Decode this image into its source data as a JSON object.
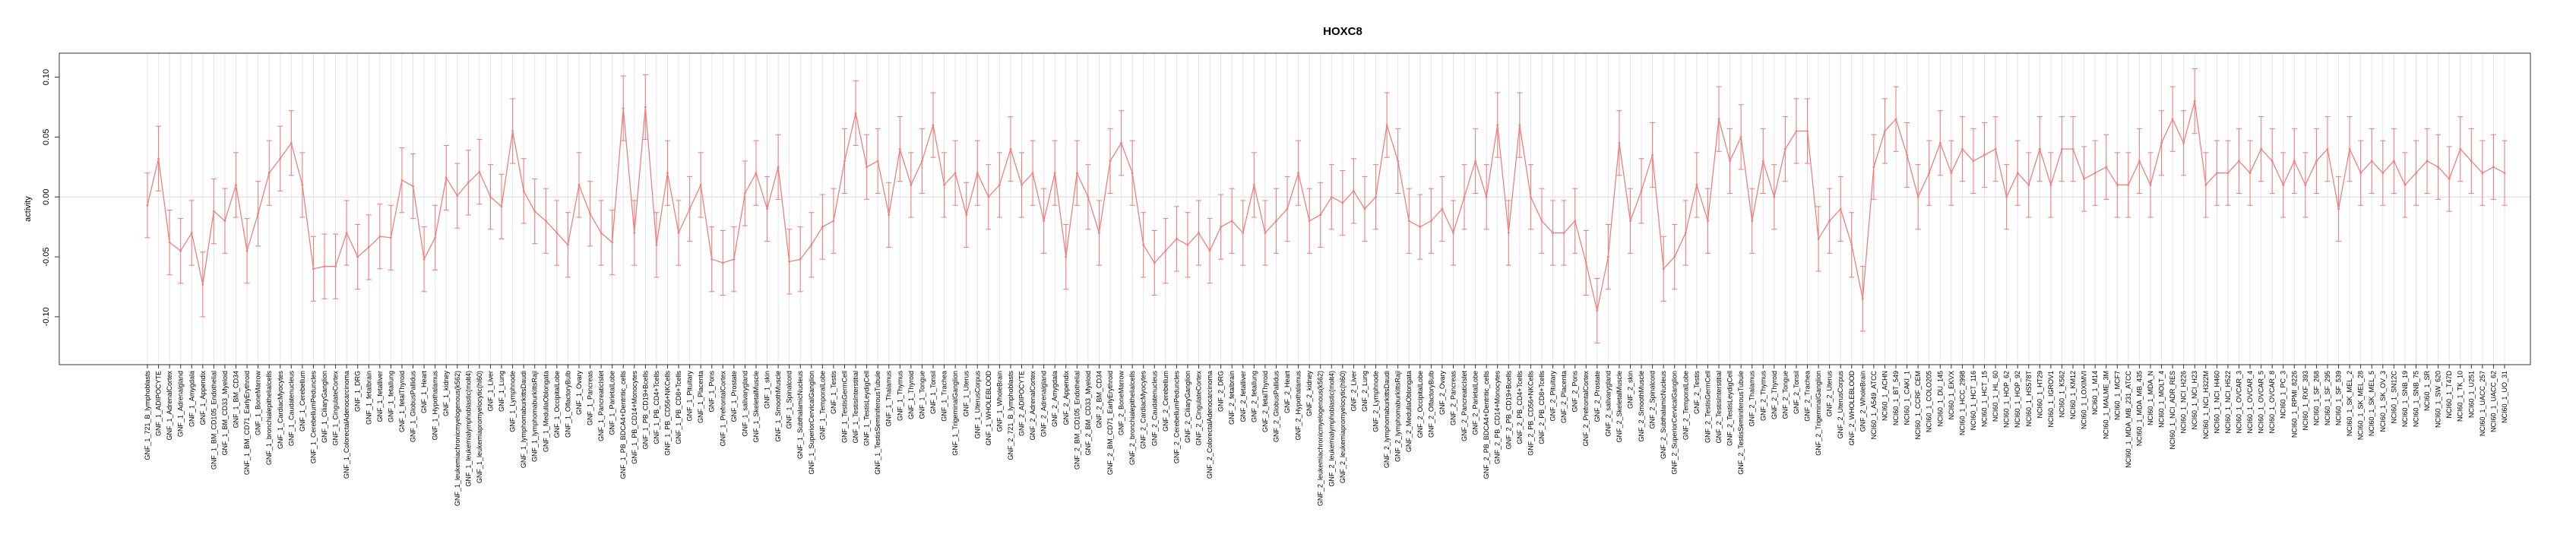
{
  "chart_data": {
    "type": "line",
    "title": "HOXC8",
    "ylabel": "activity",
    "xlabel": "",
    "ylim": [
      -0.14,
      0.12
    ],
    "yticks": [
      -0.1,
      -0.05,
      0.0,
      0.05,
      0.1
    ],
    "ytick_labels": [
      "-0.10",
      "-0.05",
      "0.00",
      "0.05",
      "0.10"
    ],
    "grid": true,
    "zero_line": true,
    "line_color": "#f08080",
    "grid_color": "#e6e6e6",
    "categories": [
      "GNF_1_721_B_lymphoblasts",
      "GNF_1_ADIPOCYTE",
      "GNF_1_AdrenalCortex",
      "GNF_1_Adrenalgland",
      "GNF_1_Amygdala",
      "GNF_1_Appendix",
      "GNF_1_BM_CD105_Endothelial",
      "GNF_1_BM_CD33_Myeloid",
      "GNF_1_BM_CD34",
      "GNF_1_BM_CD71_EarlyErythroid",
      "GNF_1_BoneMarrow",
      "GNF_1_bronchialepithelialcells",
      "GNF_1_CardiacMyocytes",
      "GNF_1_Caudatenucleus",
      "GNF_1_Cerebellum",
      "GNF_1_CerebellumPeduncles",
      "GNF_1_CiliaryGanglion",
      "GNF_1_CingulateCortex",
      "GNF_1_ColorectalAdenocarcinoma",
      "GNF_1_DRG",
      "GNF_1_fetalbrain",
      "GNF_1_fetalliver",
      "GNF_1_fetallung",
      "GNF_1_fetalThyroid",
      "GNF_1_GlobusPallidus",
      "GNF_1_Heart",
      "GNF_1_Hypothalamus",
      "GNF_1_kidney",
      "GNF_1_leukemiachronicmyelogenous(k562)",
      "GNF_1_leukemialymphoblastic(molt4)",
      "GNF_1_leukemiapromyelocytic(hl60)",
      "GNF_1_Liver",
      "GNF_1_Lung",
      "GNF_1_Lymphnode",
      "GNF_1_lymphomaburkittsDaudi",
      "GNF_1_lymphomaburkittsRaji",
      "GNF_1_MedullaOblongata",
      "GNF_1_OccipitalLobe",
      "GNF_1_OlfactoryBulb",
      "GNF_1_Ovary",
      "GNF_1_Pancreas",
      "GNF_1_PancreaticIslet",
      "GNF_1_ParietalLobe",
      "GNF_1_PB_BDCA4+Dentritic_cells",
      "GNF_1_PB_CD14+Monocytes",
      "GNF_1_PB_CD19+Bcells",
      "GNF_1_PB_CD4+Tcells",
      "GNF_1_PB_CD56+NKCells",
      "GNF_1_PB_CD8+Tcells",
      "GNF_1_Pituitary",
      "GNF_1_Placenta",
      "GNF_1_Pons",
      "GNF_1_PrefrontalCortex",
      "GNF_1_Prostate",
      "GNF_1_salivarygland",
      "GNF_1_SkeletalMuscle",
      "GNF_1_skin",
      "GNF_1_SmoothMuscle",
      "GNF_1_Spinalcord",
      "GNF_1_SubthalamicNucleus",
      "GNF_1_SuperiorCervicalGanglion",
      "GNF_1_TemporalLobe",
      "GNF_1_Testis",
      "GNF_1_TestisGermCell",
      "GNF_1_TestisInterstitial",
      "GNF_1_TestisLeydigCell",
      "GNF_1_TestisSeminiferousTubule",
      "GNF_1_Thalamus",
      "GNF_1_Thymus",
      "GNF_1_Thyroid",
      "GNF_1_Tongue",
      "GNF_1_Tonsil",
      "GNF_1_Trachea",
      "GNF_1_TrigeminalGanglion",
      "GNF_1_Uterus",
      "GNF_1_UterusCorpus",
      "GNF_1_WHOLEBLOOD",
      "GNF_1_WholeBrain",
      "GNF_2_721_B_lymphoblasts",
      "GNF_2_ADIPOCYTE",
      "GNF_2_AdrenalCortex",
      "GNF_2_Adrenalgland",
      "GNF_2_Amygdala",
      "GNF_2_Appendix",
      "GNF_2_BM_CD105_Endothelial",
      "GNF_2_BM_CD33_Myeloid",
      "GNF_2_BM_CD34",
      "GNF_2_BM_CD71_EarlyErythroid",
      "GNF_2_BoneMarrow",
      "GNF_2_bronchialepithelialcells",
      "GNF_2_CardiacMyocytes",
      "GNF_2_Caudatenucleus",
      "GNF_2_Cerebellum",
      "GNF_2_CerebellumPeduncles",
      "GNF_2_CiliaryGanglion",
      "GNF_2_CingulateCortex",
      "GNF_2_ColorectalAdenocarcinoma",
      "GNF_2_DRG",
      "GNF_2_fetalbrain",
      "GNF_2_fetalliver",
      "GNF_2_fetallung",
      "GNF_2_fetalThyroid",
      "GNF_2_GlobusPallidus",
      "GNF_2_Heart",
      "GNF_2_Hypothalamus",
      "GNF_2_kidney",
      "GNF_2_leukemiachronicmyelogenous(k562)",
      "GNF_2_leukemialymphoblastic(molt4)",
      "GNF_2_leukemiapromyelocytic(hl60)",
      "GNF_2_Liver",
      "GNF_2_Lung",
      "GNF_2_Lymphnode",
      "GNF_2_lymphomaburkittsDaudi",
      "GNF_2_lymphomaburkittsRaji",
      "GNF_2_MedullaOblongata",
      "GNF_2_OccipitalLobe",
      "GNF_2_OlfactoryBulb",
      "GNF_2_Ovary",
      "GNF_2_Pancreas",
      "GNF_2_PancreaticIslet",
      "GNF_2_ParietalLobe",
      "GNF_2_PB_BDCA4+Dentritic_cells",
      "GNF_2_PB_CD14+Monocytes",
      "GNF_2_PB_CD19+Bcells",
      "GNF_2_PB_CD4+Tcells",
      "GNF_2_PB_CD56+NKCells",
      "GNF_2_PB_CD8+Tcells",
      "GNF_2_Pituitary",
      "GNF_2_Placenta",
      "GNF_2_Pons",
      "GNF_2_PrefrontalCortex",
      "GNF_2_Prostate",
      "GNF_2_salivarygland",
      "GNF_2_SkeletalMuscle",
      "GNF_2_skin",
      "GNF_2_SmoothMuscle",
      "GNF_2_Spinalcord",
      "GNF_2_SubthalamicNucleus",
      "GNF_2_SuperiorCervicalGanglion",
      "GNF_2_TemporalLobe",
      "GNF_2_Testis",
      "GNF_2_TestisGermCell",
      "GNF_2_TestisInterstitial",
      "GNF_2_TestisLeydigCell",
      "GNF_2_TestisSeminiferousTubule",
      "GNF_2_Thalamus",
      "GNF_2_Thymus",
      "GNF_2_Thyroid",
      "GNF_2_Tongue",
      "GNF_2_Tonsil",
      "GNF_2_Trachea",
      "GNF_2_TrigeminalGanglion",
      "GNF_2_Uterus",
      "GNF_2_UterusCorpus",
      "GNF_2_WHOLEBLOOD",
      "GNF_2_WholeBrain",
      "NCI60_1_A549_ATCC",
      "NCI60_1_ACHN",
      "NCI60_1_BT_549",
      "NCI60_1_CAKI_1",
      "NCI60_1_CCRF_CEM",
      "NCI60_1_COLO205",
      "NCI60_1_DU_145",
      "NCI60_1_EKVX",
      "NCI60_1_HCC_2998",
      "NCI60_1_HCT_116",
      "NCI60_1_HCT_15",
      "NCI60_1_HL_60",
      "NCI60_1_HOP_62",
      "NCI60_1_HOP_92",
      "NCI60_1_HS578T",
      "NCI60_1_HT29",
      "NCI60_1_IGROV1",
      "NCI60_1_K562",
      "NCI60_1_KM12",
      "NCI60_1_LOXIMVI",
      "NCI60_1_M14",
      "NCI60_1_MALME_3M",
      "NCI60_1_MCF7",
      "NCI60_1_MDA_MB_231_ATCC",
      "NCI60_1_MDA_MB_435",
      "NCI60_1_MDA_N",
      "NCI60_1_MOLT_4",
      "NCI60_1_NCI_ADR_RES",
      "NCI60_1_NCI_H226",
      "NCI60_1_NCI_H23",
      "NCI60_1_NCI_H322M",
      "NCI60_1_NCI_H460",
      "NCI60_1_NCI_H522",
      "NCI60_1_OVCAR_3",
      "NCI60_1_OVCAR_4",
      "NCI60_1_OVCAR_5",
      "NCI60_1_OVCAR_8",
      "NCI60_1_PC_3",
      "NCI60_1_RPMI_8226",
      "NCI60_1_RXF_393",
      "NCI60_1_SF_268",
      "NCI60_1_SF_295",
      "NCI60_1_SF_539",
      "NCI60_1_SK_MEL_2",
      "NCI60_1_SK_MEL_28",
      "NCI60_1_SK_MEL_5",
      "NCI60_1_SK_OV_3",
      "NCI60_1_SN12C",
      "NCI60_1_SNB_19",
      "NCI60_1_SNB_75",
      "NCI60_1_SR",
      "NCI60_1_SW_620",
      "NCI60_1_T47D",
      "NCI60_1_TK_10",
      "NCI60_1_U251",
      "NCI60_1_UACC_257",
      "NCI60_1_UACC_62",
      "NCI60_1_UO_31"
    ],
    "series": [
      {
        "values": [
          -0.007,
          0.032,
          -0.038,
          -0.045,
          -0.03,
          -0.073,
          -0.012,
          -0.02,
          0.01,
          -0.045,
          -0.014,
          0.02,
          0.032,
          0.045,
          0.01,
          -0.06,
          -0.058,
          -0.058,
          -0.03,
          -0.05,
          -0.042,
          -0.033,
          -0.034,
          0.014,
          0.009,
          -0.052,
          -0.034,
          0.016,
          0.001,
          0.012,
          0.021,
          0.0,
          -0.008,
          0.055,
          0.005,
          -0.012,
          -0.02,
          -0.03,
          -0.04,
          0.01,
          -0.014,
          -0.03,
          -0.038,
          0.074,
          -0.03,
          0.075,
          -0.04,
          0.02,
          -0.03,
          -0.01,
          0.01,
          -0.052,
          -0.055,
          -0.052,
          0.003,
          0.02,
          -0.01,
          0.025,
          -0.054,
          -0.052,
          -0.04,
          -0.025,
          -0.02,
          0.03,
          0.07,
          0.025,
          0.03,
          -0.015,
          0.04,
          0.01,
          0.03,
          0.06,
          0.01,
          0.02,
          -0.015,
          0.02,
          0.0,
          0.01,
          0.04,
          0.01,
          0.02,
          -0.02,
          0.02,
          -0.05,
          0.02,
          0.0,
          -0.03,
          0.03,
          0.045,
          0.02,
          -0.04,
          -0.055,
          -0.045,
          -0.035,
          -0.04,
          -0.03,
          -0.045,
          -0.025,
          -0.02,
          -0.03,
          0.01,
          -0.03,
          -0.02,
          -0.01,
          0.02,
          -0.02,
          -0.015,
          0.0,
          -0.005,
          0.005,
          -0.01,
          0.0,
          0.06,
          0.03,
          -0.02,
          -0.025,
          -0.02,
          -0.01,
          -0.03,
          0.0,
          0.03,
          0.0,
          0.06,
          -0.03,
          0.06,
          0.0,
          -0.02,
          -0.03,
          -0.03,
          -0.02,
          -0.055,
          -0.095,
          -0.05,
          0.045,
          -0.02,
          0.005,
          0.035,
          -0.06,
          -0.05,
          -0.03,
          0.01,
          -0.02,
          0.065,
          0.03,
          0.05,
          -0.02,
          0.03,
          0.0,
          0.04,
          0.055,
          0.055,
          -0.035,
          -0.02,
          -0.01,
          -0.04,
          -0.085,
          0.025,
          0.055,
          0.065,
          0.035,
          0.0,
          0.02,
          0.045,
          0.02,
          0.04,
          0.03,
          0.035,
          0.04,
          0.0,
          0.02,
          0.01,
          0.04,
          0.01,
          0.04,
          0.04,
          0.015,
          0.02,
          0.025,
          0.01,
          0.01,
          0.03,
          0.01,
          0.045,
          0.065,
          0.045,
          0.08,
          0.01,
          0.02,
          0.02,
          0.03,
          0.02,
          0.04,
          0.03,
          0.01,
          0.03,
          0.01,
          0.03,
          0.04,
          -0.01,
          0.04,
          0.02,
          0.03,
          0.02,
          0.03,
          0.01,
          0.02,
          0.03,
          0.025,
          0.015,
          0.04,
          0.03,
          0.02,
          0.025,
          0.02
        ]
      }
    ]
  }
}
